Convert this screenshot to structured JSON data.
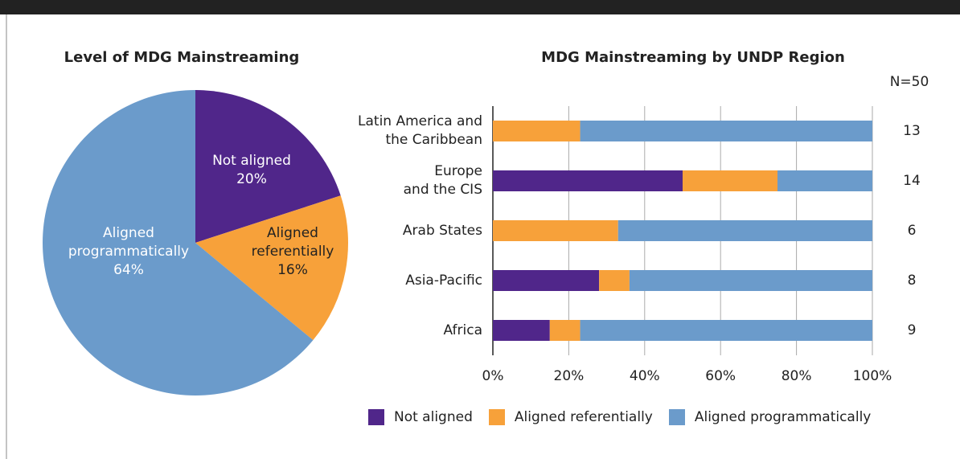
{
  "chart_data": [
    {
      "type": "pie",
      "title": "Level of MDG Mainstreaming",
      "categories": [
        "Not aligned",
        "Aligned\nreferentially",
        "Aligned\nprogrammatically"
      ],
      "values": [
        20,
        16,
        64
      ],
      "value_labels": [
        "20%",
        "16%",
        "64%"
      ],
      "colors": [
        "#50268a",
        "#f7a13a",
        "#6b9bcb"
      ]
    },
    {
      "type": "stacked_barh",
      "title": "MDG Mainstreaming by UNDP Region",
      "categories": [
        "Latin America and\nthe Caribbean",
        "Europe\nand the CIS",
        "Arab States",
        "Asia-Pacific",
        "Africa"
      ],
      "series": [
        {
          "name": "Not aligned",
          "color": "#50268a",
          "values": [
            0,
            50,
            0,
            28,
            15
          ]
        },
        {
          "name": "Aligned referentially",
          "color": "#f7a13a",
          "values": [
            23,
            25,
            33,
            8,
            8
          ]
        },
        {
          "name": "Aligned programmatically",
          "color": "#6b9bcb",
          "values": [
            77,
            25,
            67,
            64,
            77
          ]
        }
      ],
      "xlim": [
        0,
        100
      ],
      "xticks": [
        {
          "value": 0,
          "label": "0%"
        },
        {
          "value": 20,
          "label": "20%"
        },
        {
          "value": 40,
          "label": "40%"
        },
        {
          "value": 60,
          "label": "60%"
        },
        {
          "value": 80,
          "label": "80%"
        },
        {
          "value": 100,
          "label": "100%"
        }
      ],
      "grid": true,
      "legend": "bottom",
      "n_label": "N=50",
      "n_values": [
        13,
        14,
        6,
        8,
        9
      ]
    }
  ]
}
